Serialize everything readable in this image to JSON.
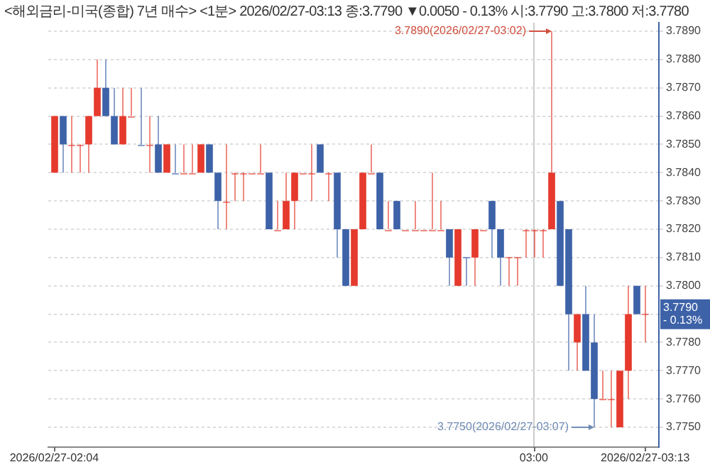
{
  "chart_data": {
    "type": "candlestick",
    "title": "<해외금리-미국(종합) 7년 매수> <1분> 2026/02/27-03:13 종:3.7790 ▼0.0050 - 0.13% 시:3.7790 고:3.7800 저:3.7780",
    "categories": [
      "2026/02/27-02:04",
      null,
      null,
      null,
      null,
      null,
      null,
      null,
      null,
      null,
      null,
      null,
      null,
      null,
      null,
      null,
      null,
      null,
      null,
      null,
      null,
      null,
      null,
      null,
      null,
      null,
      null,
      null,
      null,
      null,
      null,
      null,
      null,
      null,
      null,
      null,
      null,
      null,
      null,
      null,
      null,
      null,
      null,
      null,
      null,
      null,
      null,
      null,
      null,
      null,
      null,
      null,
      null,
      null,
      null,
      null,
      "03:00",
      null,
      null,
      null,
      null,
      null,
      null,
      null,
      null,
      null,
      null,
      null,
      null,
      "2026/02/27-03:13"
    ],
    "ohlc": [
      [
        3.784,
        3.786,
        3.784,
        3.786
      ],
      [
        3.786,
        3.786,
        3.784,
        3.785
      ],
      [
        3.785,
        3.786,
        3.784,
        3.785
      ],
      [
        3.785,
        3.785,
        3.784,
        3.785
      ],
      [
        3.785,
        3.786,
        3.784,
        3.786
      ],
      [
        3.786,
        3.788,
        3.786,
        3.787
      ],
      [
        3.787,
        3.788,
        3.786,
        3.786
      ],
      [
        3.786,
        3.787,
        3.785,
        3.785
      ],
      [
        3.785,
        3.787,
        3.785,
        3.786
      ],
      [
        3.786,
        3.787,
        3.786,
        3.786
      ],
      [
        3.785,
        3.787,
        3.785,
        3.785
      ],
      [
        3.785,
        3.786,
        3.784,
        3.785
      ],
      [
        3.785,
        3.786,
        3.784,
        3.784
      ],
      [
        3.784,
        3.785,
        3.784,
        3.785
      ],
      [
        3.784,
        3.785,
        3.784,
        3.784
      ],
      [
        3.784,
        3.785,
        3.784,
        3.784
      ],
      [
        3.784,
        3.785,
        3.784,
        3.784
      ],
      [
        3.784,
        3.785,
        3.784,
        3.785
      ],
      [
        3.785,
        3.785,
        3.784,
        3.784
      ],
      [
        3.784,
        3.784,
        3.782,
        3.783
      ],
      [
        3.783,
        3.785,
        3.782,
        3.783
      ],
      [
        3.784,
        3.784,
        3.783,
        3.784
      ],
      [
        3.784,
        3.784,
        3.783,
        3.784
      ],
      [
        3.784,
        3.784,
        3.784,
        3.784
      ],
      [
        3.784,
        3.785,
        3.784,
        3.784
      ],
      [
        3.784,
        3.784,
        3.782,
        3.782
      ],
      [
        3.782,
        3.783,
        3.782,
        3.782
      ],
      [
        3.782,
        3.784,
        3.782,
        3.783
      ],
      [
        3.783,
        3.784,
        3.782,
        3.784
      ],
      [
        3.784,
        3.784,
        3.784,
        3.784
      ],
      [
        3.784,
        3.785,
        3.783,
        3.784
      ],
      [
        3.785,
        3.785,
        3.784,
        3.784
      ],
      [
        3.784,
        3.784,
        3.783,
        3.784
      ],
      [
        3.784,
        3.784,
        3.781,
        3.782
      ],
      [
        3.782,
        3.782,
        3.78,
        3.78
      ],
      [
        3.78,
        3.782,
        3.78,
        3.782
      ],
      [
        3.782,
        3.784,
        3.782,
        3.784
      ],
      [
        3.784,
        3.785,
        3.784,
        3.784
      ],
      [
        3.784,
        3.784,
        3.782,
        3.782
      ],
      [
        3.782,
        3.783,
        3.782,
        3.782
      ],
      [
        3.783,
        3.783,
        3.782,
        3.782
      ],
      [
        3.782,
        3.782,
        3.782,
        3.782
      ],
      [
        3.782,
        3.783,
        3.782,
        3.782
      ],
      [
        3.782,
        3.782,
        3.782,
        3.782
      ],
      [
        3.782,
        3.784,
        3.782,
        3.782
      ],
      [
        3.782,
        3.783,
        3.782,
        3.782
      ],
      [
        3.782,
        3.782,
        3.78,
        3.781
      ],
      [
        3.78,
        3.782,
        3.78,
        3.782
      ],
      [
        3.781,
        3.781,
        3.78,
        3.781
      ],
      [
        3.781,
        3.782,
        3.78,
        3.782
      ],
      [
        3.782,
        3.782,
        3.782,
        3.782
      ],
      [
        3.783,
        3.783,
        3.781,
        3.782
      ],
      [
        3.782,
        3.782,
        3.78,
        3.781
      ],
      [
        3.781,
        3.781,
        3.78,
        3.781
      ],
      [
        3.781,
        3.781,
        3.78,
        3.781
      ],
      [
        3.782,
        3.782,
        3.781,
        3.782
      ],
      [
        3.782,
        3.782,
        3.781,
        3.782
      ],
      [
        3.782,
        3.782,
        3.781,
        3.782
      ],
      [
        3.782,
        3.789,
        3.782,
        3.784
      ],
      [
        3.783,
        3.783,
        3.78,
        3.78
      ],
      [
        3.782,
        3.782,
        3.777,
        3.779
      ],
      [
        3.778,
        3.779,
        3.777,
        3.779
      ],
      [
        3.779,
        3.78,
        3.777,
        3.777
      ],
      [
        3.778,
        3.779,
        3.775,
        3.776
      ],
      [
        3.776,
        3.777,
        3.776,
        3.776
      ],
      [
        3.776,
        3.777,
        3.775,
        3.776
      ],
      [
        3.775,
        3.777,
        3.775,
        3.777
      ],
      [
        3.777,
        3.78,
        3.776,
        3.779
      ],
      [
        3.78,
        3.78,
        3.779,
        3.779
      ],
      [
        3.779,
        3.78,
        3.778,
        3.779
      ]
    ],
    "colors": [
      "#e53a2d",
      "#3d62a8",
      "#e53a2d",
      "#e53a2d",
      "#e53a2d",
      "#e53a2d",
      "#3d62a8",
      "#3d62a8",
      "#e53a2d",
      "#e53a2d",
      "#3d62a8",
      "#e53a2d",
      "#3d62a8",
      "#e53a2d",
      "#3d62a8",
      "#e53a2d",
      "#e53a2d",
      "#e53a2d",
      "#3d62a8",
      "#3d62a8",
      "#e53a2d",
      "#e53a2d",
      "#e53a2d",
      "#e53a2d",
      "#e53a2d",
      "#3d62a8",
      "#e53a2d",
      "#e53a2d",
      "#e53a2d",
      "#e53a2d",
      "#e53a2d",
      "#3d62a8",
      "#e53a2d",
      "#3d62a8",
      "#3d62a8",
      "#e53a2d",
      "#e53a2d",
      "#e53a2d",
      "#3d62a8",
      "#e53a2d",
      "#3d62a8",
      "#e53a2d",
      "#e53a2d",
      "#e53a2d",
      "#e53a2d",
      "#e53a2d",
      "#3d62a8",
      "#e53a2d",
      "#3d62a8",
      "#e53a2d",
      "#e53a2d",
      "#3d62a8",
      "#3d62a8",
      "#e53a2d",
      "#e53a2d",
      "#e53a2d",
      "#e53a2d",
      "#e53a2d",
      "#e53a2d",
      "#3d62a8",
      "#3d62a8",
      "#e53a2d",
      "#3d62a8",
      "#3d62a8",
      "#e53a2d",
      "#e53a2d",
      "#e53a2d",
      "#e53a2d",
      "#3d62a8",
      "#e53a2d"
    ],
    "ylim": [
      3.7743,
      3.7893
    ],
    "yticks": [
      {
        "value": 3.775,
        "label": "3.7750"
      },
      {
        "value": 3.776,
        "label": "3.7760"
      },
      {
        "value": 3.777,
        "label": "3.7770"
      },
      {
        "value": 3.778,
        "label": "3.7780"
      },
      {
        "value": 3.779,
        "label": null
      },
      {
        "value": 3.78,
        "label": "3.7800"
      },
      {
        "value": 3.781,
        "label": "3.7810"
      },
      {
        "value": 3.782,
        "label": "3.7820"
      },
      {
        "value": 3.783,
        "label": "3.7830"
      },
      {
        "value": 3.784,
        "label": "3.7840"
      },
      {
        "value": 3.785,
        "label": "3.7850"
      },
      {
        "value": 3.786,
        "label": "3.7860"
      },
      {
        "value": 3.787,
        "label": "3.7870"
      },
      {
        "value": 3.788,
        "label": "3.7880"
      },
      {
        "value": 3.789,
        "label": "3.7890"
      }
    ],
    "grid": true,
    "annotations": [
      "3.7890(2026/02/27-03:02)",
      "3.7750(2026/02/27-03:07)",
      "3.7790",
      "- 0.13%"
    ]
  }
}
